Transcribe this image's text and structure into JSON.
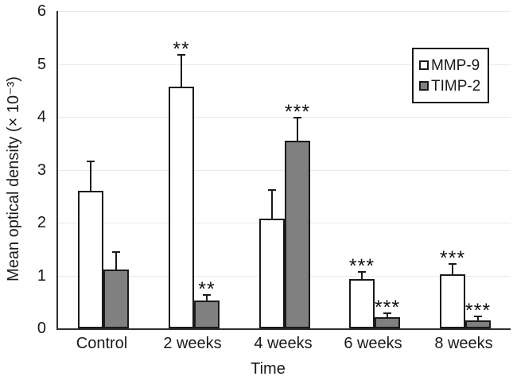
{
  "chart_data": {
    "type": "bar",
    "title": "",
    "categories": [
      "Control",
      "2 weeks",
      "4 weeks",
      "6 weeks",
      "8 weeks"
    ],
    "series": [
      {
        "name": "MMP-9",
        "fill": "#ffffff",
        "values": [
          2.6,
          4.57,
          2.08,
          0.93,
          1.02
        ],
        "errors": [
          0.58,
          0.62,
          0.55,
          0.15,
          0.22
        ],
        "sig": [
          "",
          "**",
          "",
          "***",
          "***"
        ]
      },
      {
        "name": "TIMP-2",
        "fill": "#808080",
        "values": [
          1.12,
          0.52,
          3.55,
          0.21,
          0.15
        ],
        "errors": [
          0.34,
          0.12,
          0.45,
          0.09,
          0.09
        ],
        "sig": [
          "",
          "**",
          "***",
          "***",
          "***"
        ]
      }
    ],
    "xlabel": "Time",
    "ylabel": "Mean optical density (× 10⁻³)",
    "ylim": [
      0,
      6
    ],
    "yticks": [
      0,
      1,
      2,
      3,
      4,
      5,
      6
    ],
    "grid": "horizontal-light",
    "legend_position": "top-right",
    "error_bars": "upper-only",
    "colors": {
      "bar_border": "#1a1a1a",
      "axis": "#2e2e2e",
      "gridline": "#e9e9e9",
      "text": "#1a1a1a",
      "background": "#ffffff"
    }
  }
}
